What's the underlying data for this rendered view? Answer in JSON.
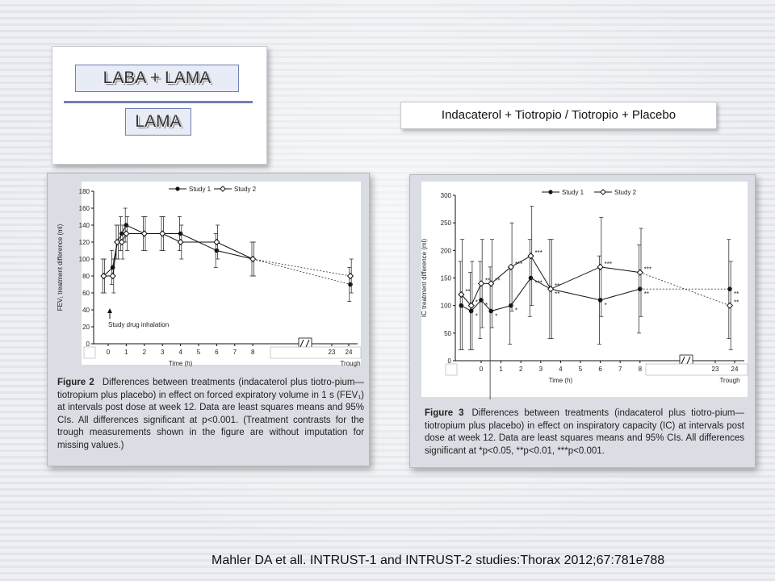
{
  "slide": {
    "legend": {
      "combo_label": "LABA + LAMA",
      "mono_label": "LAMA"
    },
    "subtitle": "Indacaterol + Tiotropio / Tiotropio + Placebo",
    "citation": "Mahler DA et all. INTRUST-1 and INTRUST-2 studies:Thorax 2012;67:781e788"
  },
  "figure2": {
    "caption_label": "Figure 2",
    "caption_text": "Differences between treatments (indacaterol plus tiotro-pium—tiotropium plus placebo) in effect on forced expiratory volume in 1 s (FEV₁) at intervals post dose at week 12. Data are least squares means and 95% CIs. All differences significant at p<0.001. (Treatment contrasts for the trough measurements shown in the figure are without imputation for missing values.)",
    "annotation": "Study drug inhalation"
  },
  "figure3": {
    "caption_label": "Figure 3",
    "caption_text": "Differences between treatments (indacaterol plus tiotro-pium—tiotropium plus placebo) in effect on inspiratory capacity (IC) at intervals post dose at week 12. Data are least squares means and 95% CIs. All differences significant at *p<0.05, **p<0.01, ***p<0.001."
  },
  "chart_data": [
    {
      "type": "line",
      "xlabel": "Time (h)",
      "ylabel": "FEV₁ treatment difference (ml)",
      "ylim": [
        0,
        180
      ],
      "yticks": [
        0,
        20,
        40,
        60,
        80,
        100,
        120,
        140,
        160,
        180
      ],
      "x_tick_labels": [
        "0",
        "1",
        "2",
        "3",
        "4",
        "5",
        "6",
        "7",
        "8",
        "23",
        "24"
      ],
      "trough_label": "Trough",
      "axis_break_after": 8,
      "legend": [
        "Study 1",
        "Study 2"
      ],
      "series": [
        {
          "name": "Study 1",
          "marker": "filled-circle",
          "points": [
            {
              "x": -0.25,
              "y": 80,
              "lo": 60,
              "hi": 100
            },
            {
              "x": 0.25,
              "y": 90,
              "lo": 70,
              "hi": 110
            },
            {
              "x": 0.5,
              "y": 120,
              "lo": 100,
              "hi": 140
            },
            {
              "x": 0.75,
              "y": 130,
              "lo": 110,
              "hi": 150
            },
            {
              "x": 1,
              "y": 140,
              "lo": 120,
              "hi": 160
            },
            {
              "x": 2,
              "y": 130,
              "lo": 110,
              "hi": 150
            },
            {
              "x": 3,
              "y": 130,
              "lo": 110,
              "hi": 150
            },
            {
              "x": 4,
              "y": 130,
              "lo": 110,
              "hi": 150
            },
            {
              "x": 6,
              "y": 110,
              "lo": 90,
              "hi": 130
            },
            {
              "x": 8,
              "y": 100,
              "lo": 80,
              "hi": 120
            },
            {
              "x": "Trough",
              "y": 70,
              "lo": 50,
              "hi": 90
            }
          ]
        },
        {
          "name": "Study 2",
          "marker": "open-diamond",
          "points": [
            {
              "x": -0.25,
              "y": 80,
              "lo": 60,
              "hi": 100
            },
            {
              "x": 0.25,
              "y": 80,
              "lo": 60,
              "hi": 100
            },
            {
              "x": 0.5,
              "y": 120,
              "lo": 100,
              "hi": 140
            },
            {
              "x": 0.75,
              "y": 120,
              "lo": 100,
              "hi": 140
            },
            {
              "x": 1,
              "y": 130,
              "lo": 110,
              "hi": 150
            },
            {
              "x": 2,
              "y": 130,
              "lo": 110,
              "hi": 150
            },
            {
              "x": 3,
              "y": 130,
              "lo": 110,
              "hi": 150
            },
            {
              "x": 4,
              "y": 120,
              "lo": 100,
              "hi": 140
            },
            {
              "x": 6,
              "y": 120,
              "lo": 100,
              "hi": 140
            },
            {
              "x": 8,
              "y": 100,
              "lo": 80,
              "hi": 120
            },
            {
              "x": "Trough",
              "y": 80,
              "lo": 60,
              "hi": 100
            }
          ]
        }
      ]
    },
    {
      "type": "line",
      "xlabel": "Time (h)",
      "ylabel": "IC treatment difference (ml)",
      "ylim": [
        0,
        300
      ],
      "yticks": [
        0,
        50,
        100,
        150,
        200,
        250,
        300
      ],
      "x_tick_labels": [
        "0",
        "1",
        "2",
        "3",
        "4",
        "5",
        "6",
        "7",
        "8",
        "23",
        "24"
      ],
      "trough_label": "Trough",
      "axis_break_after": 8,
      "legend": [
        "Study 1",
        "Study 2"
      ],
      "series": [
        {
          "name": "Study 1",
          "marker": "filled-circle",
          "points": [
            {
              "x": -1,
              "y": 100,
              "lo": 20,
              "hi": 180,
              "sig": ""
            },
            {
              "x": -0.5,
              "y": 90,
              "lo": 20,
              "hi": 160,
              "sig": "*"
            },
            {
              "x": 0,
              "y": 110,
              "lo": 40,
              "hi": 180,
              "sig": "*"
            },
            {
              "x": 0.5,
              "y": 90,
              "lo": -70,
              "hi": 170,
              "sig": "*"
            },
            {
              "x": 1.5,
              "y": 100,
              "lo": 30,
              "hi": 170,
              "sig": "*"
            },
            {
              "x": 2.5,
              "y": 150,
              "lo": 80,
              "hi": 220,
              "sig": "***"
            },
            {
              "x": 3.5,
              "y": 130,
              "lo": 40,
              "hi": 220,
              "sig": "**"
            },
            {
              "x": 6,
              "y": 110,
              "lo": 30,
              "hi": 190,
              "sig": "*"
            },
            {
              "x": 8,
              "y": 130,
              "lo": 50,
              "hi": 210,
              "sig": "**"
            },
            {
              "x": "Trough",
              "y": 130,
              "lo": 40,
              "hi": 220,
              "sig": "**"
            }
          ]
        },
        {
          "name": "Study 2",
          "marker": "open-diamond",
          "points": [
            {
              "x": -1,
              "y": 120,
              "lo": 20,
              "hi": 220,
              "sig": "**"
            },
            {
              "x": -0.5,
              "y": 100,
              "lo": 20,
              "hi": 180,
              "sig": "*"
            },
            {
              "x": 0,
              "y": 140,
              "lo": 60,
              "hi": 220,
              "sig": "**"
            },
            {
              "x": 0.5,
              "y": 140,
              "lo": 60,
              "hi": 220,
              "sig": "**"
            },
            {
              "x": 1.5,
              "y": 170,
              "lo": 90,
              "hi": 250,
              "sig": "***"
            },
            {
              "x": 2.5,
              "y": 190,
              "lo": 100,
              "hi": 280,
              "sig": "***"
            },
            {
              "x": 3.5,
              "y": 130,
              "lo": 40,
              "hi": 220,
              "sig": "**"
            },
            {
              "x": 6,
              "y": 170,
              "lo": 80,
              "hi": 260,
              "sig": "***"
            },
            {
              "x": 8,
              "y": 160,
              "lo": 80,
              "hi": 240,
              "sig": "***"
            },
            {
              "x": "Trough",
              "y": 100,
              "lo": 20,
              "hi": 180,
              "sig": "**"
            }
          ]
        }
      ]
    }
  ]
}
